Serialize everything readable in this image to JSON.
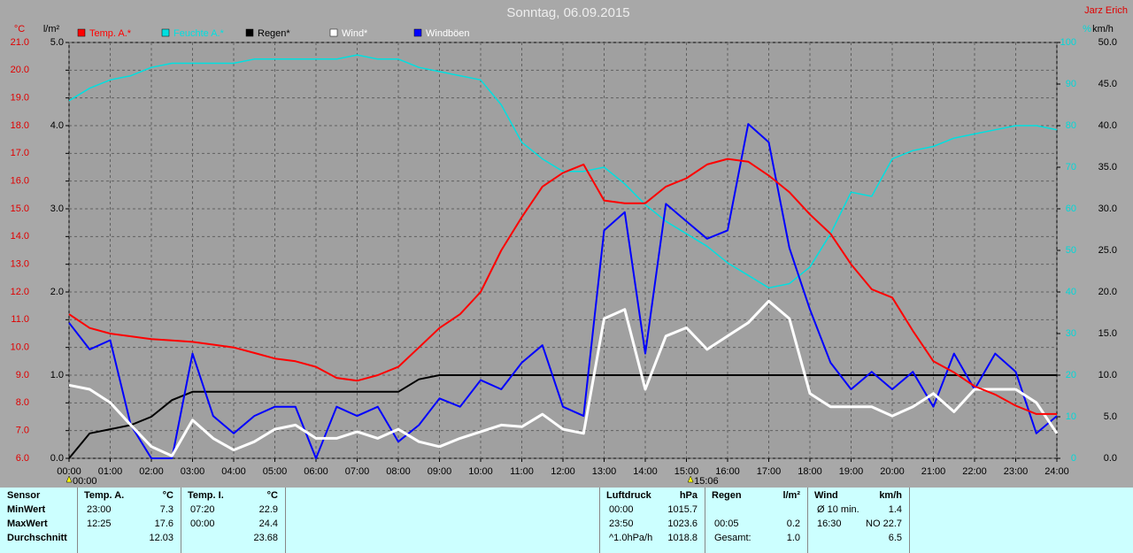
{
  "chart_data": {
    "type": "line",
    "title": "Sonntag, 06.09.2015",
    "author": "Jarz Erich",
    "x": [
      0,
      0.5,
      1,
      1.5,
      2,
      2.5,
      3,
      3.5,
      4,
      4.5,
      5,
      5.5,
      6,
      6.5,
      7,
      7.5,
      8,
      8.5,
      9,
      9.5,
      10,
      10.5,
      11,
      11.5,
      12,
      12.5,
      13,
      13.5,
      14,
      14.5,
      15,
      15.5,
      16,
      16.5,
      17,
      17.5,
      18,
      18.5,
      19,
      19.5,
      20,
      20.5,
      21,
      21.5,
      22,
      22.5,
      23,
      23.5,
      24
    ],
    "xlim": [
      0,
      24
    ],
    "xticks": [
      {
        "value": 0,
        "label": "00:00"
      },
      {
        "value": 1,
        "label": "01:00"
      },
      {
        "value": 2,
        "label": "02:00"
      },
      {
        "value": 3,
        "label": "03:00"
      },
      {
        "value": 4,
        "label": "04:00"
      },
      {
        "value": 5,
        "label": "05:00"
      },
      {
        "value": 6,
        "label": "06:00"
      },
      {
        "value": 7,
        "label": "07:00"
      },
      {
        "value": 8,
        "label": "08:00"
      },
      {
        "value": 9,
        "label": "09:00"
      },
      {
        "value": 10,
        "label": "10:00"
      },
      {
        "value": 11,
        "label": "11:00"
      },
      {
        "value": 12,
        "label": "12:00"
      },
      {
        "value": 13,
        "label": "13:00"
      },
      {
        "value": 14,
        "label": "14:00"
      },
      {
        "value": 15,
        "label": "15:00"
      },
      {
        "value": 16,
        "label": "16:00"
      },
      {
        "value": 17,
        "label": "17:00"
      },
      {
        "value": 18,
        "label": "18:00"
      },
      {
        "value": 19,
        "label": "19:00"
      },
      {
        "value": 20,
        "label": "20:00"
      },
      {
        "value": 21,
        "label": "21:00"
      },
      {
        "value": 22,
        "label": "22:00"
      },
      {
        "value": 23,
        "label": "23:00"
      },
      {
        "value": 24,
        "label": "24:00"
      }
    ],
    "grid": true,
    "axes": [
      {
        "label": "°C",
        "color": "#e00000",
        "lim": [
          6,
          21
        ],
        "ticks": [
          {
            "value": 6,
            "label": "6.0"
          },
          {
            "value": 7,
            "label": "7.0"
          },
          {
            "value": 8,
            "label": "8.0"
          },
          {
            "value": 9,
            "label": "9.0"
          },
          {
            "value": 10,
            "label": "10.0"
          },
          {
            "value": 11,
            "label": "11.0"
          },
          {
            "value": 12,
            "label": "12.0"
          },
          {
            "value": 13,
            "label": "13.0"
          },
          {
            "value": 14,
            "label": "14.0"
          },
          {
            "value": 15,
            "label": "15.0"
          },
          {
            "value": 16,
            "label": "16.0"
          },
          {
            "value": 17,
            "label": "17.0"
          },
          {
            "value": 18,
            "label": "18.0"
          },
          {
            "value": 19,
            "label": "19.0"
          },
          {
            "value": 20,
            "label": "20.0"
          },
          {
            "value": 21,
            "label": "21.0"
          }
        ]
      },
      {
        "label": "l/m²",
        "color": "#000000",
        "lim": [
          0,
          5
        ],
        "ticks": [
          {
            "value": 0,
            "label": "0.0"
          },
          {
            "value": 1,
            "label": "1.0"
          },
          {
            "value": 2,
            "label": "2.0"
          },
          {
            "value": 3,
            "label": "3.0"
          },
          {
            "value": 4,
            "label": "4.0"
          },
          {
            "value": 5,
            "label": "5.0"
          }
        ]
      },
      {
        "label": "%",
        "color": "#00d8d8",
        "lim": [
          0,
          100
        ],
        "ticks": [
          0,
          10,
          20,
          30,
          40,
          50,
          60,
          70,
          80,
          90,
          100
        ]
      },
      {
        "label": "km/h",
        "color": "#000000",
        "lim": [
          0,
          50
        ],
        "ticks": [
          {
            "value": 0,
            "label": "0.0"
          },
          {
            "value": 5,
            "label": "5.0"
          },
          {
            "value": 10,
            "label": "10.0"
          },
          {
            "value": 15,
            "label": "15.0"
          },
          {
            "value": 20,
            "label": "20.0"
          },
          {
            "value": 25,
            "label": "25.0"
          },
          {
            "value": 30,
            "label": "30.0"
          },
          {
            "value": 35,
            "label": "35.0"
          },
          {
            "value": 40,
            "label": "40.0"
          },
          {
            "value": 45,
            "label": "45.0"
          },
          {
            "value": 50,
            "label": "50.0"
          }
        ]
      }
    ],
    "series": [
      {
        "name": "Feuchte A.*",
        "color": "#00e0e0",
        "axis": 2,
        "values": [
          86,
          89,
          91,
          92,
          94,
          95,
          95,
          95,
          95,
          96,
          96,
          96,
          96,
          96,
          97,
          96,
          96,
          94,
          93,
          92,
          91,
          85,
          76,
          72,
          69,
          69,
          70,
          66,
          61,
          57,
          54,
          51,
          47,
          44,
          41,
          42,
          46,
          54,
          64,
          63,
          72,
          74,
          75,
          77,
          78,
          79,
          80,
          80,
          79
        ]
      },
      {
        "name": "Regen*",
        "color": "#000000",
        "axis": 1,
        "values": [
          0,
          0.3,
          0.35,
          0.4,
          0.5,
          0.7,
          0.8,
          0.8,
          0.8,
          0.8,
          0.8,
          0.8,
          0.8,
          0.8,
          0.8,
          0.8,
          0.8,
          0.95,
          1,
          1,
          1,
          1,
          1,
          1,
          1,
          1,
          1,
          1,
          1,
          1,
          1,
          1,
          1,
          1,
          1,
          1,
          1,
          1,
          1,
          1,
          1,
          1,
          1,
          1,
          1,
          1,
          1,
          1,
          1
        ]
      },
      {
        "name": "Windböen",
        "color": "#0000ff",
        "axis": 3,
        "values": [
          16.3,
          13.1,
          14.2,
          4.0,
          0,
          0,
          12.6,
          5.1,
          3.0,
          5.1,
          6.2,
          6.2,
          0,
          6.2,
          5.1,
          6.2,
          2.0,
          4.0,
          7.2,
          6.2,
          9.4,
          8.3,
          11.5,
          13.6,
          6.2,
          5.1,
          27.4,
          29.6,
          12.6,
          30.6,
          28.5,
          26.4,
          27.4,
          40.2,
          38.0,
          25.3,
          17.9,
          11.5,
          8.3,
          10.4,
          8.3,
          10.4,
          6.2,
          12.6,
          8.3,
          12.6,
          10.4,
          3.0,
          5.1
        ]
      },
      {
        "name": "Wind*",
        "color": "#ffffff",
        "axis": 3,
        "values": [
          8.8,
          8.3,
          6.7,
          4.0,
          1.4,
          0.3,
          4.6,
          2.4,
          1.0,
          2.0,
          3.5,
          4.0,
          2.4,
          2.4,
          3.2,
          2.4,
          3.5,
          2.0,
          1.4,
          2.4,
          3.2,
          4.0,
          3.8,
          5.3,
          3.5,
          3.0,
          16.8,
          17.9,
          8.3,
          14.7,
          15.7,
          13.1,
          14.7,
          16.3,
          18.9,
          16.8,
          7.8,
          6.2,
          6.2,
          6.2,
          5.1,
          6.2,
          7.8,
          5.6,
          8.3,
          8.3,
          8.3,
          6.7,
          3.0
        ]
      },
      {
        "name": "Temp. A.*",
        "color": "#ff0000",
        "axis": 0,
        "values": [
          11.2,
          10.7,
          10.5,
          10.4,
          10.3,
          10.25,
          10.2,
          10.1,
          10.0,
          9.8,
          9.6,
          9.5,
          9.3,
          8.9,
          8.8,
          9.0,
          9.3,
          10.0,
          10.7,
          11.2,
          12.0,
          13.5,
          14.7,
          15.8,
          16.3,
          16.6,
          15.3,
          15.2,
          15.2,
          15.8,
          16.1,
          16.6,
          16.8,
          16.7,
          16.2,
          15.6,
          14.8,
          14.1,
          13.0,
          12.1,
          11.8,
          10.6,
          9.5,
          9.1,
          8.6,
          8.3,
          7.9,
          7.6,
          7.6
        ]
      }
    ],
    "legend_order": [
      4,
      0,
      1,
      3,
      2
    ],
    "annotations": [
      {
        "x": 0,
        "label": "00:00"
      },
      {
        "x": 15.1,
        "label": "15:06"
      }
    ]
  },
  "summary": {
    "row_labels": [
      "Sensor",
      "MinWert",
      "MaxWert",
      "Durchschnitt"
    ],
    "blocks": [
      {
        "name": "Temp. A.",
        "unit": "°C",
        "rows": [
          [
            "23:00",
            "7.3"
          ],
          [
            "12:25",
            "17.6"
          ],
          [
            null,
            "12.03"
          ]
        ]
      },
      {
        "name": "Temp. I.",
        "unit": "°C",
        "rows": [
          [
            "07:20",
            "22.9"
          ],
          [
            "00:00",
            "24.4"
          ],
          [
            null,
            "23.68"
          ]
        ]
      },
      {
        "name": "Luftdruck",
        "unit": "hPa",
        "rows": [
          [
            "00:00",
            "1015.7"
          ],
          [
            "23:50",
            "1023.6"
          ],
          [
            "^1.0hPa/h",
            "1018.8"
          ]
        ]
      },
      {
        "name": "Regen",
        "unit": "l/m²",
        "rows": [
          [
            null,
            null
          ],
          [
            "00:05",
            "0.2"
          ],
          [
            "Gesamt:",
            "1.0"
          ]
        ]
      },
      {
        "name": "Wind",
        "unit": "km/h",
        "rows": [
          [
            "Ø 10 min.",
            "1.4"
          ],
          [
            "16:30",
            "NO 22.7"
          ],
          [
            null,
            "6.5"
          ]
        ]
      }
    ]
  }
}
